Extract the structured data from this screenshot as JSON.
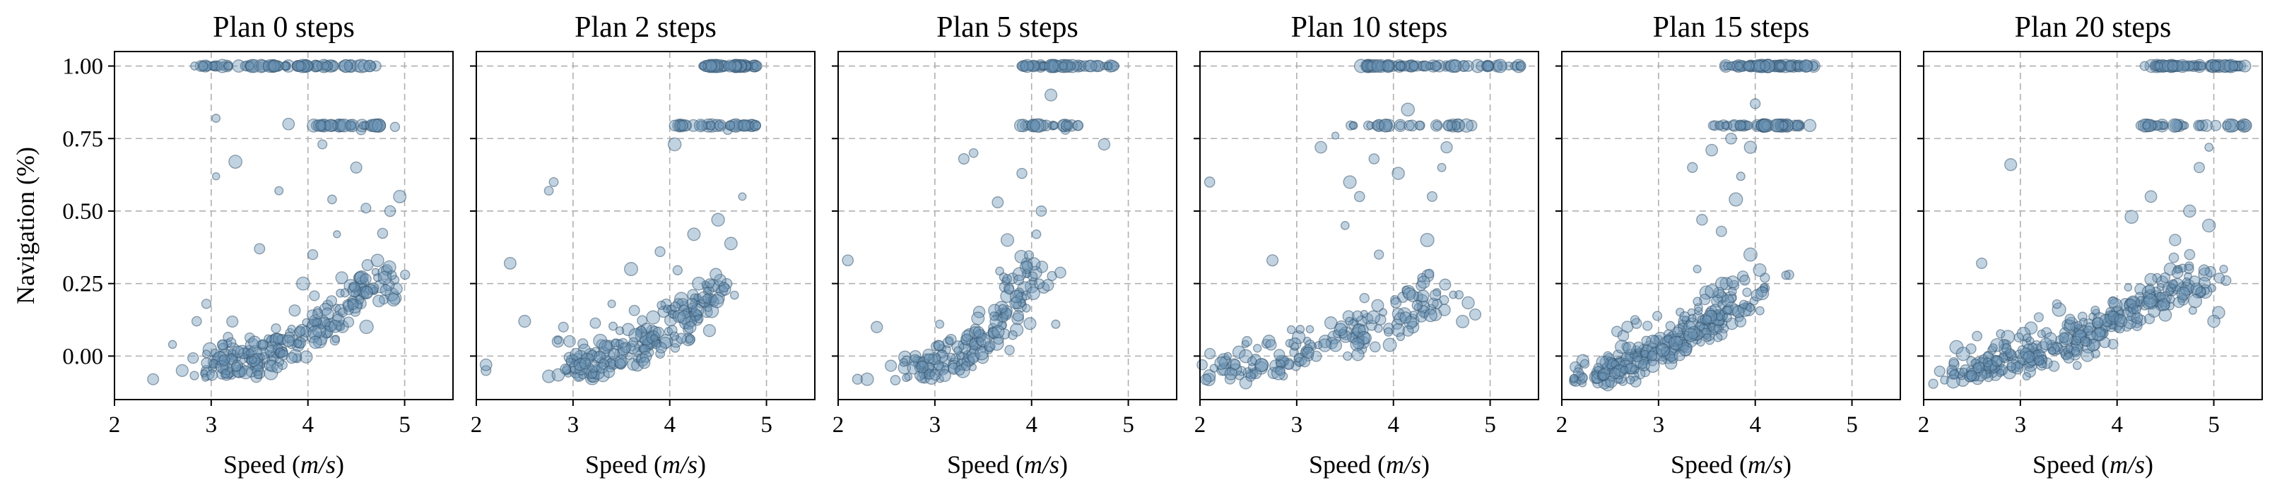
{
  "figure": {
    "ylabel": "Navigation (%)",
    "colors": {
      "marker_fill": "#6b93b6",
      "marker_edge": "#34536e",
      "grid": "#b0b0b0",
      "frame": "#000000"
    }
  },
  "chart_data": [
    {
      "type": "scatter",
      "title": "Plan 0 steps",
      "xlabel": "Speed (m/s)",
      "ylabel": "Navigation (%)",
      "xlim": [
        2.0,
        5.5
      ],
      "ylim": [
        -0.15,
        1.05
      ],
      "xticks": [
        "2",
        "3",
        "4",
        "5"
      ],
      "yticks": [
        "0.00",
        "0.25",
        "0.50",
        "0.75",
        "1.00"
      ],
      "grid": true,
      "legend": "none",
      "seed": 11,
      "points": [
        [
          2.4,
          -0.08
        ],
        [
          2.6,
          0.04
        ],
        [
          2.7,
          -0.05
        ],
        [
          2.85,
          0.12
        ],
        [
          2.95,
          0.18
        ],
        [
          3.05,
          0.62
        ],
        [
          3.25,
          0.67
        ],
        [
          3.5,
          0.37
        ],
        [
          3.7,
          0.57
        ],
        [
          3.95,
          0.25
        ],
        [
          4.05,
          0.35
        ],
        [
          4.3,
          0.42
        ],
        [
          4.25,
          0.54
        ],
        [
          4.6,
          0.51
        ],
        [
          4.85,
          0.5
        ],
        [
          4.95,
          0.55
        ],
        [
          4.9,
          0.79
        ],
        [
          4.55,
          0.78
        ],
        [
          4.9,
          0.2
        ],
        [
          3.05,
          0.82
        ],
        [
          3.8,
          0.8
        ],
        [
          4.15,
          0.73
        ],
        [
          4.5,
          0.65
        ],
        [
          4.35,
          0.27
        ],
        [
          2.95,
          -0.05
        ],
        [
          3.5,
          -0.06
        ]
      ],
      "clusters": [
        {
          "x": [
            2.85,
            4.7
          ],
          "y": [
            1.0,
            1.0
          ],
          "n": 90,
          "dx": 0.35,
          "dy": 0.0,
          "dist": "uniform"
        },
        {
          "x": [
            4.05,
            4.75
          ],
          "y": [
            0.795,
            0.795
          ],
          "n": 40,
          "dx": 0.35,
          "dy": 0.0,
          "dist": "uniform"
        },
        {
          "x": [
            3.0,
            4.8
          ],
          "y": [
            -0.06,
            0.26
          ],
          "curve": 1.8,
          "n": 230,
          "dx": 0.14,
          "dy": 0.06,
          "dist": "normal"
        }
      ]
    },
    {
      "type": "scatter",
      "title": "Plan 2 steps",
      "xlabel": "Speed (m/s)",
      "ylabel": "",
      "xlim": [
        2.0,
        5.5
      ],
      "ylim": [
        -0.15,
        1.05
      ],
      "xticks": [
        "2",
        "3",
        "4",
        "5"
      ],
      "yticks": [
        "0.00",
        "0.25",
        "0.50",
        "0.75",
        "1.00"
      ],
      "grid": true,
      "legend": "none",
      "seed": 23,
      "points": [
        [
          2.1,
          -0.05
        ],
        [
          2.1,
          -0.03
        ],
        [
          2.35,
          0.32
        ],
        [
          2.5,
          0.12
        ],
        [
          2.75,
          0.57
        ],
        [
          2.8,
          0.6
        ],
        [
          2.9,
          0.1
        ],
        [
          3.4,
          0.18
        ],
        [
          3.6,
          0.3
        ],
        [
          3.9,
          0.36
        ],
        [
          4.05,
          0.73
        ],
        [
          4.25,
          0.42
        ],
        [
          4.5,
          0.47
        ],
        [
          4.75,
          0.55
        ],
        [
          4.6,
          0.78
        ],
        [
          4.3,
          0.25
        ],
        [
          2.75,
          -0.07
        ],
        [
          2.95,
          -0.06
        ]
      ],
      "clusters": [
        {
          "x": [
            4.35,
            4.9
          ],
          "y": [
            1.0,
            1.0
          ],
          "n": 70,
          "dx": 0.25,
          "dy": 0.0,
          "dist": "uniform"
        },
        {
          "x": [
            4.0,
            4.95
          ],
          "y": [
            0.795,
            0.795
          ],
          "n": 40,
          "dx": 0.3,
          "dy": 0.0,
          "dist": "uniform"
        },
        {
          "x": [
            3.0,
            4.5
          ],
          "y": [
            -0.06,
            0.22
          ],
          "curve": 1.8,
          "n": 210,
          "dx": 0.13,
          "dy": 0.06,
          "dist": "normal"
        }
      ]
    },
    {
      "type": "scatter",
      "title": "Plan 5 steps",
      "xlabel": "Speed (m/s)",
      "ylabel": "",
      "xlim": [
        2.0,
        5.5
      ],
      "ylim": [
        -0.15,
        1.05
      ],
      "xticks": [
        "2",
        "3",
        "4",
        "5"
      ],
      "yticks": [
        "0.00",
        "0.25",
        "0.50",
        "0.75",
        "1.00"
      ],
      "grid": true,
      "legend": "none",
      "seed": 37,
      "points": [
        [
          2.1,
          0.33
        ],
        [
          2.2,
          -0.08
        ],
        [
          2.3,
          -0.08
        ],
        [
          2.4,
          0.1
        ],
        [
          3.05,
          0.11
        ],
        [
          3.3,
          0.68
        ],
        [
          3.4,
          0.7
        ],
        [
          3.65,
          0.53
        ],
        [
          3.75,
          0.4
        ],
        [
          3.9,
          0.63
        ],
        [
          4.05,
          0.42
        ],
        [
          4.0,
          0.24
        ],
        [
          4.2,
          0.9
        ],
        [
          4.35,
          0.78
        ],
        [
          4.25,
          0.11
        ],
        [
          4.1,
          0.5
        ],
        [
          4.75,
          0.73
        ],
        [
          3.95,
          0.32
        ]
      ],
      "clusters": [
        {
          "x": [
            3.9,
            4.85
          ],
          "y": [
            1.0,
            1.0
          ],
          "n": 60,
          "dx": 0.25,
          "dy": 0.0,
          "dist": "uniform"
        },
        {
          "x": [
            3.9,
            4.5
          ],
          "y": [
            0.795,
            0.795
          ],
          "n": 25,
          "dx": 0.25,
          "dy": 0.0,
          "dist": "uniform"
        },
        {
          "x": [
            2.7,
            4.1
          ],
          "y": [
            -0.07,
            0.3
          ],
          "curve": 2.2,
          "n": 170,
          "dx": 0.12,
          "dy": 0.05,
          "dist": "normal"
        }
      ]
    },
    {
      "type": "scatter",
      "title": "Plan 10 steps",
      "xlabel": "Speed (m/s)",
      "ylabel": "",
      "xlim": [
        2.0,
        5.5
      ],
      "ylim": [
        -0.15,
        1.05
      ],
      "xticks": [
        "2",
        "3",
        "4",
        "5"
      ],
      "yticks": [
        "0.00",
        "0.25",
        "0.50",
        "0.75",
        "1.00"
      ],
      "grid": true,
      "legend": "none",
      "seed": 53,
      "points": [
        [
          2.1,
          0.6
        ],
        [
          2.75,
          0.33
        ],
        [
          3.25,
          0.72
        ],
        [
          3.4,
          0.76
        ],
        [
          3.55,
          0.6
        ],
        [
          3.65,
          0.55
        ],
        [
          3.8,
          0.68
        ],
        [
          4.15,
          0.85
        ],
        [
          4.05,
          0.63
        ],
        [
          4.4,
          0.55
        ],
        [
          4.35,
          0.4
        ],
        [
          4.55,
          0.72
        ],
        [
          4.5,
          0.65
        ],
        [
          3.5,
          0.45
        ],
        [
          3.7,
          0.2
        ],
        [
          3.85,
          0.35
        ],
        [
          4.45,
          0.22
        ]
      ],
      "clusters": [
        {
          "x": [
            3.6,
            5.3
          ],
          "y": [
            1.0,
            1.0
          ],
          "n": 80,
          "dx": 0.35,
          "dy": 0.0,
          "dist": "uniform"
        },
        {
          "x": [
            3.55,
            4.8
          ],
          "y": [
            0.795,
            0.795
          ],
          "n": 30,
          "dx": 0.35,
          "dy": 0.0,
          "dist": "uniform"
        },
        {
          "x": [
            2.1,
            4.6
          ],
          "y": [
            -0.09,
            0.18
          ],
          "curve": 1.3,
          "n": 170,
          "dx": 0.18,
          "dy": 0.06,
          "dist": "normal"
        }
      ]
    },
    {
      "type": "scatter",
      "title": "Plan 15 steps",
      "xlabel": "Speed (m/s)",
      "ylabel": "",
      "xlim": [
        2.0,
        5.5
      ],
      "ylim": [
        -0.15,
        1.05
      ],
      "xticks": [
        "2",
        "3",
        "4",
        "5"
      ],
      "yticks": [
        "0.00",
        "0.25",
        "0.50",
        "0.75",
        "1.00"
      ],
      "grid": true,
      "legend": "none",
      "seed": 71,
      "points": [
        [
          3.35,
          0.65
        ],
        [
          3.55,
          0.71
        ],
        [
          3.95,
          0.72
        ],
        [
          3.85,
          0.62
        ],
        [
          3.8,
          0.54
        ],
        [
          3.65,
          0.43
        ],
        [
          3.45,
          0.47
        ],
        [
          3.95,
          0.35
        ],
        [
          4.35,
          0.28
        ],
        [
          4.1,
          0.27
        ],
        [
          3.75,
          0.75
        ],
        [
          4.0,
          0.87
        ],
        [
          3.4,
          0.3
        ],
        [
          3.7,
          0.25
        ]
      ],
      "clusters": [
        {
          "x": [
            3.65,
            4.65
          ],
          "y": [
            1.0,
            1.0
          ],
          "n": 70,
          "dx": 0.25,
          "dy": 0.0,
          "dist": "uniform"
        },
        {
          "x": [
            3.55,
            4.55
          ],
          "y": [
            0.795,
            0.795
          ],
          "n": 55,
          "dx": 0.3,
          "dy": 0.0,
          "dist": "uniform"
        },
        {
          "x": [
            2.3,
            3.95
          ],
          "y": [
            -0.09,
            0.2
          ],
          "curve": 1.4,
          "n": 260,
          "dx": 0.13,
          "dy": 0.06,
          "dist": "normal"
        }
      ]
    },
    {
      "type": "scatter",
      "title": "Plan 20 steps",
      "xlabel": "Speed (m/s)",
      "ylabel": "",
      "xlim": [
        2.0,
        5.5
      ],
      "ylim": [
        -0.15,
        1.05
      ],
      "xticks": [
        "2",
        "3",
        "4",
        "5"
      ],
      "yticks": [
        "0.00",
        "0.25",
        "0.50",
        "0.75",
        "1.00"
      ],
      "grid": true,
      "legend": "none",
      "seed": 97,
      "points": [
        [
          2.3,
          -0.06
        ],
        [
          2.6,
          0.32
        ],
        [
          2.9,
          0.66
        ],
        [
          3.4,
          0.16
        ],
        [
          4.15,
          0.48
        ],
        [
          4.35,
          0.55
        ],
        [
          4.6,
          0.4
        ],
        [
          4.75,
          0.5
        ],
        [
          4.75,
          0.35
        ],
        [
          4.95,
          0.72
        ],
        [
          4.85,
          0.65
        ],
        [
          4.95,
          0.45
        ],
        [
          5.05,
          0.15
        ],
        [
          5.0,
          0.12
        ],
        [
          4.7,
          0.22
        ],
        [
          4.55,
          0.3
        ]
      ],
      "clusters": [
        {
          "x": [
            4.25,
            5.35
          ],
          "y": [
            1.0,
            1.0
          ],
          "n": 70,
          "dx": 0.3,
          "dy": 0.0,
          "dist": "uniform"
        },
        {
          "x": [
            4.25,
            5.3
          ],
          "y": [
            0.795,
            0.795
          ],
          "n": 35,
          "dx": 0.35,
          "dy": 0.0,
          "dist": "uniform"
        },
        {
          "x": [
            2.3,
            4.9
          ],
          "y": [
            -0.08,
            0.26
          ],
          "curve": 1.5,
          "n": 320,
          "dx": 0.16,
          "dy": 0.06,
          "dist": "normal"
        }
      ]
    }
  ]
}
